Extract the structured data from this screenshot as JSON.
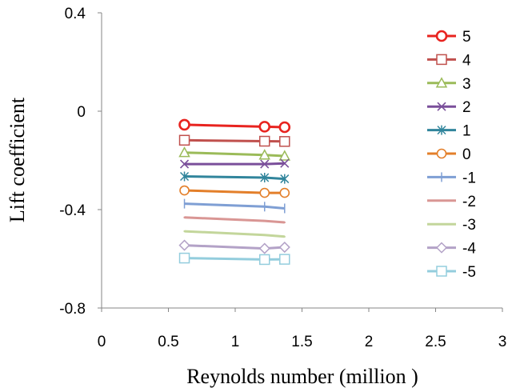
{
  "chart_data": {
    "type": "line",
    "xlabel": "Reynolds number (million )",
    "ylabel": "Lift coefficient",
    "xlim": [
      0,
      3
    ],
    "ylim": [
      -0.8,
      0.4
    ],
    "x_ticks": [
      "0",
      "0.5",
      "1",
      "1.5",
      "2",
      "2.5",
      "3"
    ],
    "y_ticks": [
      "0.4",
      "0",
      "-0.4",
      "-0.8"
    ],
    "grid": false,
    "legend_position": "right",
    "x": [
      0.62,
      1.22,
      1.37
    ],
    "series": [
      {
        "name": "5",
        "values": [
          -0.055,
          -0.063,
          -0.065
        ],
        "color": "#e8231f",
        "marker": "circle-bold"
      },
      {
        "name": "4",
        "values": [
          -0.118,
          -0.122,
          -0.123
        ],
        "color": "#c0504d",
        "marker": "square"
      },
      {
        "name": "3",
        "values": [
          -0.168,
          -0.178,
          -0.182
        ],
        "color": "#9bbb59",
        "marker": "triangle"
      },
      {
        "name": "2",
        "values": [
          -0.215,
          -0.215,
          -0.212
        ],
        "color": "#7a4f9a",
        "marker": "x"
      },
      {
        "name": "1",
        "values": [
          -0.265,
          -0.27,
          -0.275
        ],
        "color": "#31859c",
        "marker": "star"
      },
      {
        "name": "0",
        "values": [
          -0.322,
          -0.332,
          -0.332
        ],
        "color": "#e37f2a",
        "marker": "circle"
      },
      {
        "name": "-1",
        "values": [
          -0.376,
          -0.388,
          -0.395
        ],
        "color": "#7f9fd4",
        "marker": "plus"
      },
      {
        "name": "-2",
        "values": [
          -0.432,
          -0.446,
          -0.452
        ],
        "color": "#d99694",
        "marker": "dash"
      },
      {
        "name": "-3",
        "values": [
          -0.488,
          -0.503,
          -0.51
        ],
        "color": "#c3d69b",
        "marker": "dash"
      },
      {
        "name": "-4",
        "values": [
          -0.545,
          -0.558,
          -0.553
        ],
        "color": "#b3a2c7",
        "marker": "diamond"
      },
      {
        "name": "-5",
        "values": [
          -0.597,
          -0.603,
          -0.602
        ],
        "color": "#93cddd",
        "marker": "square"
      }
    ]
  }
}
